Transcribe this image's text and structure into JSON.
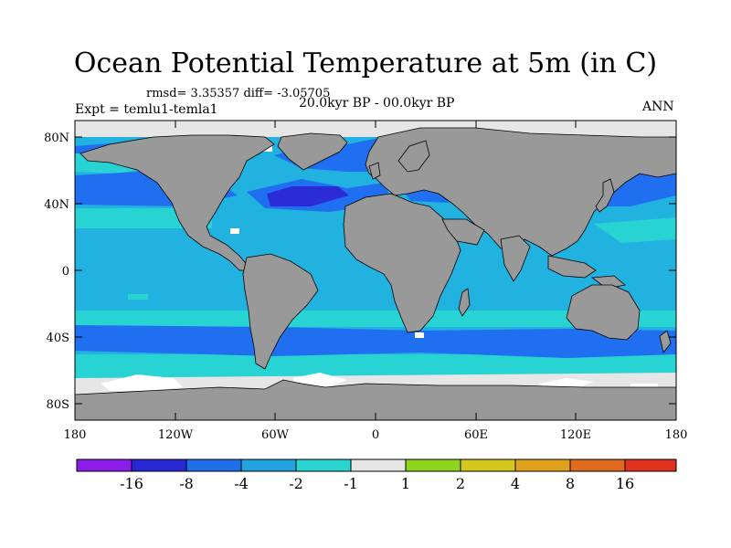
{
  "title": "Ocean Potential Temperature at 5m (in C)",
  "stats": "rmsd= 3.35357  diff= -3.05705",
  "experiment": "Expt = temlu1-temla1",
  "period": "20.0kyr BP - 00.0kyr BP",
  "season": "ANN",
  "colors": {
    "land": "#999999",
    "sea_ice_nodata": "#e6e6e6",
    "ocean_base": "#22b2e0",
    "cyan_band": "#27d3d3",
    "blue_band": "#1f6ff0",
    "deep_blue": "#2c2cd6"
  },
  "map": {
    "lat_labels": [
      "80N",
      "40N",
      "0",
      "40S",
      "80S"
    ],
    "lon_labels": [
      "180",
      "120W",
      "60W",
      "0",
      "60E",
      "120E",
      "180"
    ]
  },
  "colorbar": {
    "colors": [
      "#8c1de8",
      "#2727d4",
      "#1f6fe8",
      "#22a3e0",
      "#2ad4d0",
      "#e6e6e6",
      "#8fd41d",
      "#d4c81d",
      "#e0a21d",
      "#e06a1d",
      "#e0321d"
    ],
    "labels": [
      "-16",
      "-8",
      "-4",
      "-2",
      "-1",
      "1",
      "2",
      "4",
      "8",
      "16"
    ]
  }
}
